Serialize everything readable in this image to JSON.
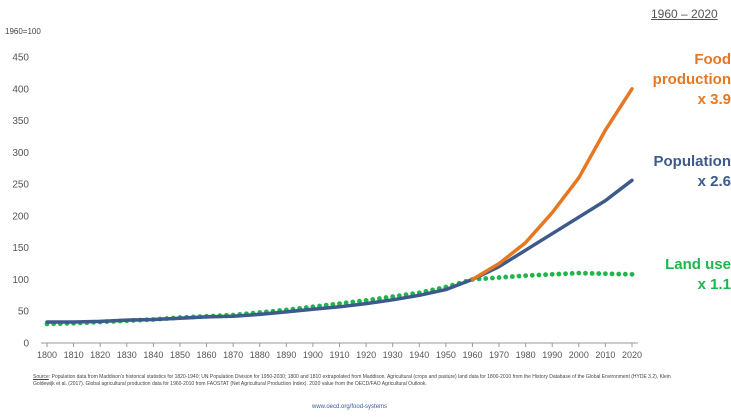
{
  "header": {
    "range_label": "1960 – 2020",
    "y_unit_label": "1960=100"
  },
  "annotations": {
    "food": {
      "line1": "Food",
      "line2": "production",
      "multiplier": "x 3.9",
      "color": "#e87722"
    },
    "population": {
      "line1": "Population",
      "multiplier": "x 2.6",
      "color": "#3d5a8a"
    },
    "land": {
      "line1": "Land use",
      "multiplier": "x 1.1",
      "color": "#1fb54b"
    }
  },
  "footer": {
    "source_key": "Source",
    "source_text": ": Population data from Maddison's historical statistics for 1820-1940; UN Population Division for 1950-2030; 1800 and 1810 extrapolated from Maddison. Agricultural (crops and pasture) land data for 1800-2010 from the History Database of the Global Environment (HYDE 3.2), Klein Goldewijk et al. (2017). Global agricultural production data for 1960-2010 from FAOSTAT (Net Agricultural Production Index). 2020 value from the OECD/FAO Agricultural Outlook.",
    "url": "www.oecd.org/food-systems"
  },
  "chart_data": {
    "type": "line",
    "title": "",
    "xlabel": "",
    "ylabel": "1960=100",
    "ylim": [
      0,
      450
    ],
    "xlim": [
      1800,
      2020
    ],
    "y_ticks": [
      0,
      50,
      100,
      150,
      200,
      250,
      300,
      350,
      400,
      450
    ],
    "x_ticks": [
      1800,
      1810,
      1820,
      1830,
      1840,
      1850,
      1860,
      1870,
      1880,
      1890,
      1900,
      1910,
      1920,
      1930,
      1940,
      1950,
      1960,
      1970,
      1980,
      1990,
      2000,
      2010,
      2020
    ],
    "grid": false,
    "series": [
      {
        "name": "Population",
        "color": "#3d5a8a",
        "style": "solid",
        "x": [
          1800,
          1810,
          1820,
          1830,
          1840,
          1850,
          1860,
          1870,
          1880,
          1890,
          1900,
          1910,
          1920,
          1930,
          1940,
          1950,
          1960,
          1970,
          1980,
          1990,
          2000,
          2010,
          2020
        ],
        "values": [
          33,
          33,
          34,
          36,
          37,
          39,
          41,
          42,
          45,
          49,
          53,
          57,
          62,
          68,
          75,
          84,
          100,
          120,
          146,
          172,
          198,
          224,
          256
        ]
      },
      {
        "name": "Food production",
        "color": "#e87722",
        "style": "solid",
        "x": [
          1960,
          1970,
          1980,
          1990,
          2000,
          2010,
          2020
        ],
        "values": [
          100,
          125,
          158,
          205,
          260,
          335,
          400
        ]
      },
      {
        "name": "Land use",
        "color": "#1fb54b",
        "style": "dotted",
        "x": [
          1800,
          1810,
          1820,
          1830,
          1840,
          1850,
          1860,
          1870,
          1880,
          1890,
          1900,
          1910,
          1920,
          1930,
          1940,
          1950,
          1960,
          1970,
          1980,
          1990,
          2000,
          2010,
          2020
        ],
        "values": [
          30,
          31,
          33,
          35,
          37,
          40,
          42,
          44,
          48,
          52,
          57,
          62,
          67,
          73,
          79,
          88,
          100,
          103,
          106,
          108,
          110,
          109,
          108
        ]
      }
    ]
  }
}
